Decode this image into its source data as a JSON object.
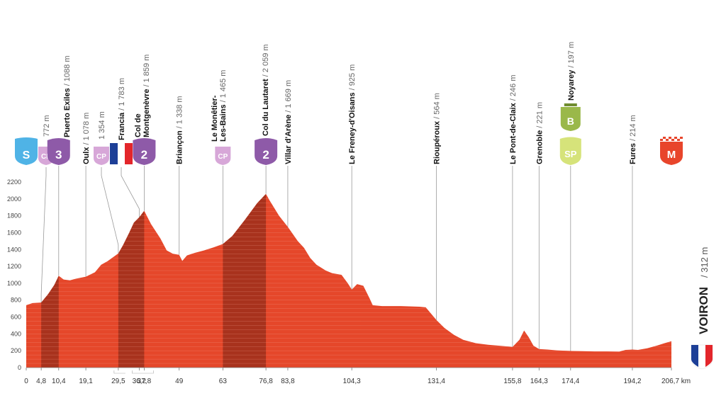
{
  "chart_data": {
    "type": "area",
    "x_unit": "km",
    "xlim": [
      0,
      206.7
    ],
    "ylim": [
      0,
      2200
    ],
    "y_ticks": [
      0,
      200,
      400,
      600,
      800,
      1000,
      1200,
      1400,
      1600,
      1800,
      2000,
      2200
    ],
    "x_ticks": [
      {
        "v": 0,
        "label": "0"
      },
      {
        "v": 4.8,
        "label": "4,8"
      },
      {
        "v": 10.4,
        "label": "10,4"
      },
      {
        "v": 19.1,
        "label": "19,1"
      },
      {
        "v": 29.5,
        "label": "29,5"
      },
      {
        "v": 36.2,
        "label": "36,2"
      },
      {
        "v": 37.8,
        "label": "37,8"
      },
      {
        "v": 49,
        "label": "49"
      },
      {
        "v": 63,
        "label": "63"
      },
      {
        "v": 76.8,
        "label": "76,8"
      },
      {
        "v": 83.8,
        "label": "83,8"
      },
      {
        "v": 104.3,
        "label": "104,3"
      },
      {
        "v": 131.4,
        "label": "131,4"
      },
      {
        "v": 155.8,
        "label": "155,8"
      },
      {
        "v": 164.3,
        "label": "164,3"
      },
      {
        "v": 174.4,
        "label": "174,4"
      },
      {
        "v": 194.2,
        "label": "194,2"
      },
      {
        "v": 206.7,
        "label": "206,7 km"
      }
    ],
    "profile": [
      [
        0,
        740
      ],
      [
        2,
        765
      ],
      [
        4.8,
        772
      ],
      [
        7,
        870
      ],
      [
        9,
        980
      ],
      [
        10.4,
        1088
      ],
      [
        12,
        1045
      ],
      [
        14,
        1035
      ],
      [
        16,
        1055
      ],
      [
        19.1,
        1078
      ],
      [
        22,
        1130
      ],
      [
        24,
        1220
      ],
      [
        26,
        1260
      ],
      [
        29.5,
        1354
      ],
      [
        31,
        1450
      ],
      [
        33,
        1600
      ],
      [
        34.5,
        1720
      ],
      [
        36.2,
        1783
      ],
      [
        37.8,
        1859
      ],
      [
        40,
        1700
      ],
      [
        43,
        1530
      ],
      [
        45,
        1390
      ],
      [
        47,
        1350
      ],
      [
        49,
        1338
      ],
      [
        50,
        1265
      ],
      [
        51.5,
        1330
      ],
      [
        54,
        1360
      ],
      [
        57,
        1390
      ],
      [
        60,
        1425
      ],
      [
        63,
        1465
      ],
      [
        66,
        1560
      ],
      [
        70,
        1750
      ],
      [
        74,
        1950
      ],
      [
        76.8,
        2059
      ],
      [
        78,
        1980
      ],
      [
        81,
        1800
      ],
      [
        83.8,
        1669
      ],
      [
        87,
        1500
      ],
      [
        89,
        1420
      ],
      [
        91,
        1300
      ],
      [
        93,
        1220
      ],
      [
        96,
        1150
      ],
      [
        98,
        1120
      ],
      [
        101,
        1100
      ],
      [
        103,
        1000
      ],
      [
        104.3,
        925
      ],
      [
        106,
        990
      ],
      [
        108,
        970
      ],
      [
        110,
        820
      ],
      [
        111,
        740
      ],
      [
        114,
        730
      ],
      [
        120,
        730
      ],
      [
        126,
        722
      ],
      [
        128,
        715
      ],
      [
        131.4,
        564
      ],
      [
        134,
        470
      ],
      [
        137,
        390
      ],
      [
        140,
        330
      ],
      [
        144,
        290
      ],
      [
        148,
        270
      ],
      [
        152,
        258
      ],
      [
        155.8,
        246
      ],
      [
        158,
        330
      ],
      [
        159.5,
        440
      ],
      [
        161,
        360
      ],
      [
        162.5,
        260
      ],
      [
        164.3,
        221
      ],
      [
        167,
        214
      ],
      [
        170,
        205
      ],
      [
        174.4,
        197
      ],
      [
        178,
        195
      ],
      [
        182,
        192
      ],
      [
        186,
        192
      ],
      [
        190,
        190
      ],
      [
        192,
        210
      ],
      [
        194.2,
        214
      ],
      [
        196,
        210
      ],
      [
        199,
        230
      ],
      [
        202,
        260
      ],
      [
        204.5,
        290
      ],
      [
        206.7,
        312
      ]
    ],
    "dark_segments": [
      [
        4.8,
        10.4
      ],
      [
        29.5,
        37.8
      ],
      [
        63,
        76.8
      ]
    ],
    "waypoints": [
      {
        "km": 0,
        "badge": {
          "type": "start",
          "text": "S",
          "color": "#4fb3e6"
        }
      },
      {
        "km": 4.8,
        "alt": "772 m",
        "badge": {
          "type": "cp",
          "text": "CP",
          "color": "#d7a7d8"
        }
      },
      {
        "km": 10.4,
        "name": "Puerto Exiles",
        "alt": "/ 1088 m",
        "badge": {
          "type": "climb",
          "text": "3",
          "color": "#8e5aa8"
        }
      },
      {
        "km": 19.1,
        "name": "Oulx",
        "alt": "/ 1 078 m"
      },
      {
        "km": 29.5,
        "alt": "1 354 m",
        "badge": {
          "type": "cp",
          "text": "CP",
          "color": "#d7a7d8"
        }
      },
      {
        "km": 36.2,
        "name": "Francia",
        "alt": "/ 1 783 m",
        "badge": {
          "type": "flag"
        }
      },
      {
        "km": 37.8,
        "name": "Col de",
        "name2": "Montgenèvre",
        "alt": "/ 1 859 m",
        "badge": {
          "type": "climb",
          "text": "2",
          "color": "#8e5aa8"
        }
      },
      {
        "km": 49,
        "name": "Briançon",
        "alt": "/ 1 338 m"
      },
      {
        "km": 63,
        "name": "Le Monêtier-",
        "name2": "Les-Bains",
        "alt": "/ 1 465 m",
        "badge": {
          "type": "cp",
          "text": "CP",
          "color": "#d7a7d8"
        }
      },
      {
        "km": 76.8,
        "name": "Col du Lautaret",
        "alt": "/ 2 059 m",
        "badge": {
          "type": "climb",
          "text": "2",
          "color": "#8e5aa8"
        }
      },
      {
        "km": 83.8,
        "name": "Villar d'Arène",
        "alt": "/ 1 669 m"
      },
      {
        "km": 104.3,
        "name": "Le Freney-d'Oisans",
        "alt": "/ 925 m"
      },
      {
        "km": 131.4,
        "name": "Rioupéroux",
        "alt": "/ 564 m"
      },
      {
        "km": 155.8,
        "name": "Le Pont-de-Claix",
        "alt": "/ 246 m"
      },
      {
        "km": 164.3,
        "name": "Grenoble",
        "alt": "/ 221 m"
      },
      {
        "km": 174.4,
        "name": "Noyarey",
        "alt": "/ 197 m",
        "badge": {
          "type": "sprint",
          "text": "SP",
          "color": "#d6e37a"
        },
        "bonus": {
          "text": "B",
          "color": "#9ab84a"
        }
      },
      {
        "km": 194.2,
        "name": "Fures",
        "alt": "/ 214 m"
      },
      {
        "km": 206.7,
        "badge": {
          "type": "finish",
          "text": "M",
          "color": "#e8452b"
        }
      }
    ],
    "finish": {
      "name": "VOIRON",
      "alt": "/ 312 m"
    },
    "colors": {
      "fill": "#e5472a",
      "dark": "#a8321d",
      "gridline": "#f2a594",
      "leader": "#9a9a9a",
      "axis": "#bbbbbb"
    }
  }
}
